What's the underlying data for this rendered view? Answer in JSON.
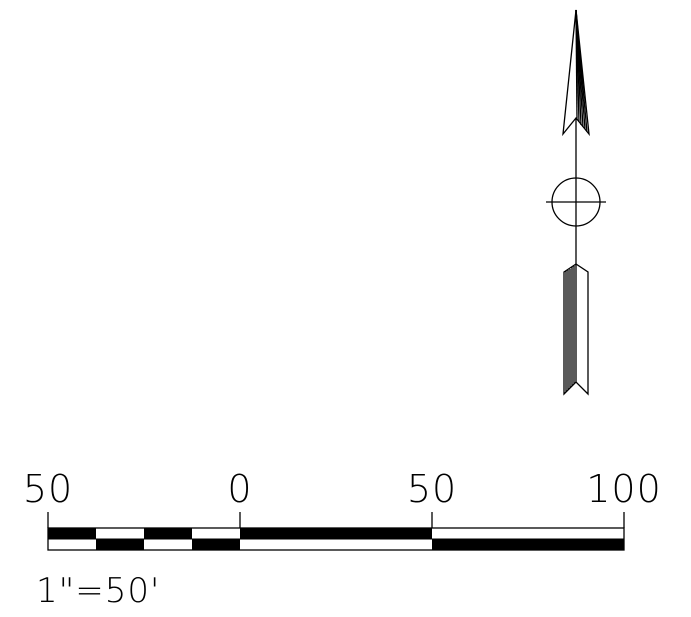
{
  "north_arrow": {
    "icon": "north-arrow-icon",
    "stroke_color": "#000000"
  },
  "scale_bar": {
    "tick_labels": [
      "50",
      "0",
      "50",
      "100"
    ],
    "scale_text": "1\"=50'",
    "fill_color": "#000000",
    "background_color": "#ffffff"
  }
}
